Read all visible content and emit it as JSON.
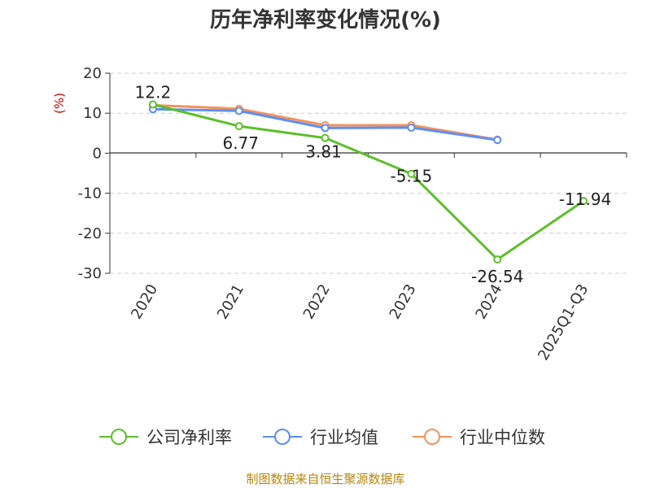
{
  "chart_data": {
    "type": "line",
    "title": "历年净利率变化情况(%)",
    "ylabel": "(%)",
    "xlabel": "",
    "categories": [
      "2020",
      "2021",
      "2022",
      "2023",
      "2024",
      "2025Q1-Q3"
    ],
    "yticks": [
      "20",
      "10",
      "0",
      "-10",
      "-20",
      "-30"
    ],
    "ylim": [
      -30,
      20
    ],
    "grid": true,
    "legend_position": "bottom",
    "series": [
      {
        "name": "公司净利率",
        "color": "#5cbf2a",
        "values": [
          12.2,
          6.77,
          3.81,
          -5.15,
          -26.54,
          -11.94
        ],
        "labels": [
          "12.2",
          "6.77",
          "3.81",
          "-5.15",
          "-26.54",
          "-11.94"
        ]
      },
      {
        "name": "行业均值",
        "color": "#5b8ff9",
        "values": [
          11.0,
          10.6,
          6.3,
          6.4,
          3.3,
          null
        ]
      },
      {
        "name": "行业中位数",
        "color": "#f5925a",
        "values": [
          12.0,
          11.1,
          7.0,
          7.0,
          3.4,
          null
        ]
      }
    ]
  },
  "source": "制图数据来自恒生聚源数据库"
}
